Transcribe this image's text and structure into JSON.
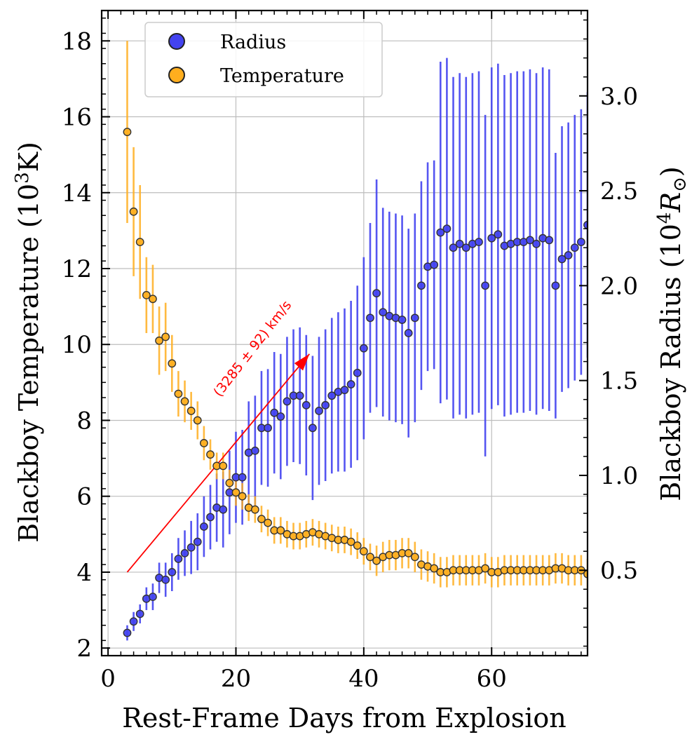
{
  "chart_data": {
    "type": "scatter",
    "title": "",
    "xlabel": "Rest-Frame Days from Explosion",
    "ylabel_left_base": "Blackboy Temperature (10",
    "ylabel_left_sup": "3",
    "ylabel_left_tail": "K)",
    "ylabel_right_base": "Blackboy Radius (10",
    "ylabel_right_sup": "4",
    "ylabel_right_unit": "R",
    "ylabel_right_sub": "⊙",
    "ylabel_right_close": ")",
    "xlim": [
      -1,
      75
    ],
    "ylim_left": [
      1.8,
      18.8
    ],
    "ylim_right": [
      0.05,
      3.45
    ],
    "x_ticks": [
      0,
      20,
      40,
      60
    ],
    "y_left_ticks": [
      2,
      4,
      6,
      8,
      10,
      12,
      14,
      16,
      18
    ],
    "y_right_ticks": [
      0.5,
      1.0,
      1.5,
      2.0,
      2.5,
      3.0
    ],
    "y_right_tick_labels": [
      "0.5",
      "1.0",
      "1.5",
      "2.0",
      "2.5",
      "3.0"
    ],
    "grid": true,
    "legend_position": "top-left",
    "series": [
      {
        "name": "Radius",
        "axis": "right",
        "color": "#4343F0",
        "points": [
          [
            3,
            0.17,
            0.04
          ],
          [
            4,
            0.23,
            0.05
          ],
          [
            5,
            0.27,
            0.05
          ],
          [
            6,
            0.35,
            0.06
          ],
          [
            7,
            0.36,
            0.07
          ],
          [
            8,
            0.46,
            0.08
          ],
          [
            9,
            0.45,
            0.09
          ],
          [
            10,
            0.49,
            0.1
          ],
          [
            11,
            0.56,
            0.11
          ],
          [
            12,
            0.59,
            0.12
          ],
          [
            13,
            0.62,
            0.14
          ],
          [
            14,
            0.65,
            0.15
          ],
          [
            15,
            0.73,
            0.16
          ],
          [
            16,
            0.78,
            0.17
          ],
          [
            17,
            0.83,
            0.18
          ],
          [
            18,
            0.82,
            0.2
          ],
          [
            19,
            0.91,
            0.22
          ],
          [
            20,
            0.99,
            0.24
          ],
          [
            21,
            0.99,
            0.25
          ],
          [
            22,
            1.12,
            0.27
          ],
          [
            23,
            1.13,
            0.29
          ],
          [
            24,
            1.25,
            0.3
          ],
          [
            25,
            1.25,
            0.31
          ],
          [
            26,
            1.33,
            0.32
          ],
          [
            27,
            1.31,
            0.33
          ],
          [
            28,
            1.39,
            0.34
          ],
          [
            29,
            1.42,
            0.35
          ],
          [
            30,
            1.42,
            0.36
          ],
          [
            31,
            1.37,
            0.37
          ],
          [
            32,
            1.25,
            0.38
          ],
          [
            33,
            1.34,
            0.39
          ],
          [
            34,
            1.37,
            0.4
          ],
          [
            35,
            1.42,
            0.41
          ],
          [
            36,
            1.44,
            0.42
          ],
          [
            37,
            1.45,
            0.43
          ],
          [
            38,
            1.48,
            0.44
          ],
          [
            39,
            1.54,
            0.46
          ],
          [
            40,
            1.67,
            0.48
          ],
          [
            41,
            1.83,
            0.5
          ],
          [
            42,
            1.96,
            0.6
          ],
          [
            43,
            1.86,
            0.55
          ],
          [
            44,
            1.84,
            0.55
          ],
          [
            45,
            1.83,
            0.55
          ],
          [
            46,
            1.82,
            0.55
          ],
          [
            47,
            1.75,
            0.55
          ],
          [
            48,
            1.83,
            0.55
          ],
          [
            49,
            2.0,
            0.55
          ],
          [
            50,
            2.1,
            0.55
          ],
          [
            51,
            2.11,
            0.55
          ],
          [
            52,
            2.28,
            0.9
          ],
          [
            53,
            2.3,
            0.9
          ],
          [
            54,
            2.2,
            0.9
          ],
          [
            55,
            2.22,
            0.9
          ],
          [
            56,
            2.2,
            0.9
          ],
          [
            57,
            2.22,
            0.9
          ],
          [
            58,
            2.23,
            0.9
          ],
          [
            59,
            2.0,
            0.9
          ],
          [
            60,
            2.25,
            0.9
          ],
          [
            61,
            2.27,
            0.9
          ],
          [
            62,
            2.21,
            0.9
          ],
          [
            63,
            2.22,
            0.9
          ],
          [
            64,
            2.23,
            0.9
          ],
          [
            65,
            2.23,
            0.9
          ],
          [
            66,
            2.24,
            0.9
          ],
          [
            67,
            2.22,
            0.9
          ],
          [
            68,
            2.25,
            0.9
          ],
          [
            69,
            2.24,
            0.9
          ],
          [
            70,
            2.0,
            0.7
          ],
          [
            71,
            2.14,
            0.7
          ],
          [
            72,
            2.16,
            0.7
          ],
          [
            73,
            2.2,
            0.7
          ],
          [
            74,
            2.23,
            0.7
          ],
          [
            75,
            2.32,
            0.7
          ]
        ]
      },
      {
        "name": "Temperature",
        "axis": "left",
        "color": "#FFAE1E",
        "points": [
          [
            3,
            15.6,
            2.4
          ],
          [
            4,
            13.5,
            1.7
          ],
          [
            5,
            12.7,
            1.5
          ],
          [
            6,
            11.3,
            1.0
          ],
          [
            7,
            11.2,
            0.9
          ],
          [
            8,
            10.1,
            0.9
          ],
          [
            9,
            10.2,
            0.9
          ],
          [
            10,
            9.5,
            0.75
          ],
          [
            11,
            8.7,
            0.6
          ],
          [
            12,
            8.5,
            0.55
          ],
          [
            13,
            8.25,
            0.5
          ],
          [
            14,
            8.0,
            0.5
          ],
          [
            15,
            7.4,
            0.45
          ],
          [
            16,
            7.1,
            0.4
          ],
          [
            17,
            6.8,
            0.35
          ],
          [
            18,
            6.8,
            0.35
          ],
          [
            19,
            6.35,
            0.35
          ],
          [
            20,
            6.1,
            0.35
          ],
          [
            21,
            6.0,
            0.35
          ],
          [
            22,
            5.7,
            0.35
          ],
          [
            23,
            5.65,
            0.35
          ],
          [
            24,
            5.4,
            0.35
          ],
          [
            25,
            5.3,
            0.35
          ],
          [
            26,
            5.1,
            0.35
          ],
          [
            27,
            5.1,
            0.35
          ],
          [
            28,
            5.0,
            0.35
          ],
          [
            29,
            4.95,
            0.35
          ],
          [
            30,
            4.95,
            0.35
          ],
          [
            31,
            5.0,
            0.35
          ],
          [
            32,
            5.05,
            0.35
          ],
          [
            33,
            5.0,
            0.35
          ],
          [
            34,
            4.95,
            0.35
          ],
          [
            35,
            4.9,
            0.35
          ],
          [
            36,
            4.85,
            0.35
          ],
          [
            37,
            4.85,
            0.35
          ],
          [
            38,
            4.8,
            0.35
          ],
          [
            39,
            4.7,
            0.35
          ],
          [
            40,
            4.55,
            0.35
          ],
          [
            41,
            4.4,
            0.35
          ],
          [
            42,
            4.3,
            0.4
          ],
          [
            43,
            4.4,
            0.4
          ],
          [
            44,
            4.45,
            0.4
          ],
          [
            45,
            4.45,
            0.4
          ],
          [
            46,
            4.5,
            0.4
          ],
          [
            47,
            4.5,
            0.4
          ],
          [
            48,
            4.4,
            0.4
          ],
          [
            49,
            4.2,
            0.4
          ],
          [
            50,
            4.15,
            0.4
          ],
          [
            51,
            4.1,
            0.4
          ],
          [
            52,
            4.0,
            0.4
          ],
          [
            53,
            4.0,
            0.4
          ],
          [
            54,
            4.05,
            0.4
          ],
          [
            55,
            4.05,
            0.4
          ],
          [
            56,
            4.05,
            0.4
          ],
          [
            57,
            4.05,
            0.4
          ],
          [
            58,
            4.05,
            0.4
          ],
          [
            59,
            4.1,
            0.4
          ],
          [
            60,
            4.0,
            0.4
          ],
          [
            61,
            4.0,
            0.4
          ],
          [
            62,
            4.05,
            0.4
          ],
          [
            63,
            4.05,
            0.4
          ],
          [
            64,
            4.05,
            0.4
          ],
          [
            65,
            4.05,
            0.4
          ],
          [
            66,
            4.05,
            0.4
          ],
          [
            67,
            4.05,
            0.4
          ],
          [
            68,
            4.05,
            0.4
          ],
          [
            69,
            4.05,
            0.4
          ],
          [
            70,
            4.1,
            0.4
          ],
          [
            71,
            4.1,
            0.4
          ],
          [
            72,
            4.05,
            0.4
          ],
          [
            73,
            4.05,
            0.4
          ],
          [
            74,
            4.05,
            0.4
          ],
          [
            75,
            3.95,
            0.4
          ]
        ]
      }
    ],
    "annotation": {
      "text": "(3285 ± 92) km/s",
      "color": "#FF0000",
      "arrow_from": [
        3,
        4.0
      ],
      "arrow_to": [
        31.5,
        9.75
      ],
      "text_anchor_x": 17.5,
      "text_anchor_y": 8.6
    }
  }
}
